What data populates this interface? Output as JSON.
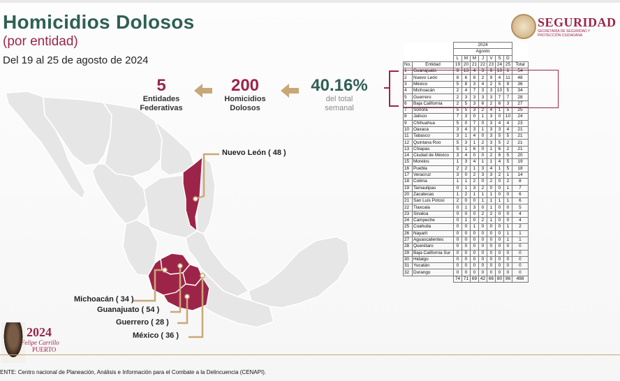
{
  "header": {
    "title": "Homicidios Dolosos",
    "subtitle": "(por entidad)",
    "date_range": "Del 19 al 25 de agosto de 2024",
    "logo_text": "SEGURIDAD",
    "logo_subtext": "SECRETARÍA DE SEGURIDAD Y PROTECCIÓN CIUDADANA"
  },
  "stats": {
    "entidades": {
      "value": "5",
      "label": "Entidades Federativas"
    },
    "homicidios": {
      "value": "200",
      "label": "Homicidios Dolosos"
    },
    "percent": {
      "value": "40.16%",
      "label": "del total semanal"
    }
  },
  "map_labels": {
    "nuevo_leon": "Nuevo León ( 48 )",
    "michoacan": "Michoacán ( 34 )",
    "guanajuato": "Guanajuato ( 54 )",
    "guerrero": "Guerrero ( 28 )",
    "mexico": "México ( 36 )"
  },
  "table": {
    "year": "2024",
    "month": "Agosto",
    "weekdays": [
      "L",
      "M",
      "M",
      "J",
      "V",
      "S",
      "D"
    ],
    "col_no": "No.",
    "col_entidad": "Entidad",
    "days": [
      "19",
      "20",
      "21",
      "22",
      "23",
      "24",
      "25"
    ],
    "col_total": "Total",
    "rows": [
      {
        "no": "1",
        "entidad": "Guanajuato",
        "v": [
          "9",
          "13",
          "4",
          "3",
          "9",
          "10",
          "6"
        ],
        "total": "54"
      },
      {
        "no": "2",
        "entidad": "Nuevo León",
        "v": [
          "8",
          "6",
          "8",
          "2",
          "9",
          "4",
          "11"
        ],
        "total": "48"
      },
      {
        "no": "3",
        "entidad": "México",
        "v": [
          "5",
          "8",
          "3",
          "4",
          "2",
          "5",
          "9"
        ],
        "total": "36"
      },
      {
        "no": "4",
        "entidad": "Michoacán",
        "v": [
          "2",
          "4",
          "7",
          "3",
          "3",
          "10",
          "5"
        ],
        "total": "34"
      },
      {
        "no": "5",
        "entidad": "Guerrero",
        "v": [
          "2",
          "3",
          "3",
          "3",
          "3",
          "7",
          "7"
        ],
        "total": "28"
      },
      {
        "no": "6",
        "entidad": "Baja California",
        "v": [
          "2",
          "5",
          "3",
          "6",
          "2",
          "6",
          "3"
        ],
        "total": "27"
      },
      {
        "no": "7",
        "entidad": "Sonora",
        "v": [
          "5",
          "5",
          "3",
          "2",
          "4",
          "1",
          "5"
        ],
        "total": "25"
      },
      {
        "no": "8",
        "entidad": "Jalisco",
        "v": [
          "7",
          "3",
          "0",
          "1",
          "3",
          "0",
          "10"
        ],
        "total": "24"
      },
      {
        "no": "9",
        "entidad": "Chihuahua",
        "v": [
          "5",
          "0",
          "7",
          "0",
          "3",
          "4",
          "4"
        ],
        "total": "23"
      },
      {
        "no": "10",
        "entidad": "Oaxaca",
        "v": [
          "3",
          "4",
          "3",
          "1",
          "3",
          "3",
          "4"
        ],
        "total": "21"
      },
      {
        "no": "11",
        "entidad": "Tabasco",
        "v": [
          "3",
          "1",
          "4",
          "0",
          "3",
          "5",
          "5"
        ],
        "total": "21"
      },
      {
        "no": "12",
        "entidad": "Quintana Roo",
        "v": [
          "5",
          "3",
          "1",
          "2",
          "3",
          "5",
          "2"
        ],
        "total": "21"
      },
      {
        "no": "13",
        "entidad": "Chiapas",
        "v": [
          "5",
          "1",
          "6",
          "0",
          "1",
          "6",
          "2"
        ],
        "total": "21"
      },
      {
        "no": "14",
        "entidad": "Ciudad de México",
        "v": [
          "3",
          "4",
          "0",
          "0",
          "2",
          "6",
          "5"
        ],
        "total": "20"
      },
      {
        "no": "15",
        "entidad": "Morelos",
        "v": [
          "1",
          "3",
          "4",
          "1",
          "1",
          "4",
          "5"
        ],
        "total": "19"
      },
      {
        "no": "16",
        "entidad": "Puebla",
        "v": [
          "2",
          "2",
          "1",
          "3",
          "4",
          "1",
          "5"
        ],
        "total": "18"
      },
      {
        "no": "17",
        "entidad": "Veracruz",
        "v": [
          "3",
          "0",
          "2",
          "3",
          "3",
          "2",
          "1"
        ],
        "total": "14"
      },
      {
        "no": "18",
        "entidad": "Colima",
        "v": [
          "1",
          "1",
          "2",
          "0",
          "2",
          "0",
          "2"
        ],
        "total": "8"
      },
      {
        "no": "19",
        "entidad": "Tamaulipas",
        "v": [
          "0",
          "1",
          "3",
          "2",
          "0",
          "0",
          "1"
        ],
        "total": "7"
      },
      {
        "no": "20",
        "entidad": "Zacatecas",
        "v": [
          "1",
          "2",
          "1",
          "1",
          "1",
          "0",
          "0"
        ],
        "total": "6"
      },
      {
        "no": "21",
        "entidad": "San Luis Potosí",
        "v": [
          "2",
          "0",
          "0",
          "1",
          "1",
          "1",
          "1"
        ],
        "total": "6"
      },
      {
        "no": "22",
        "entidad": "Tlaxcala",
        "v": [
          "0",
          "1",
          "3",
          "0",
          "1",
          "0",
          "0"
        ],
        "total": "5"
      },
      {
        "no": "23",
        "entidad": "Sinaloa",
        "v": [
          "0",
          "0",
          "0",
          "2",
          "2",
          "0",
          "0"
        ],
        "total": "4"
      },
      {
        "no": "24",
        "entidad": "Campeche",
        "v": [
          "0",
          "1",
          "0",
          "2",
          "1",
          "0",
          "0"
        ],
        "total": "4"
      },
      {
        "no": "25",
        "entidad": "Coahuila",
        "v": [
          "0",
          "0",
          "1",
          "0",
          "0",
          "0",
          "1"
        ],
        "total": "2"
      },
      {
        "no": "26",
        "entidad": "Nayarit",
        "v": [
          "0",
          "0",
          "0",
          "0",
          "0",
          "0",
          "1"
        ],
        "total": "1"
      },
      {
        "no": "27",
        "entidad": "Aguascalientes",
        "v": [
          "0",
          "0",
          "0",
          "0",
          "0",
          "0",
          "1"
        ],
        "total": "1"
      },
      {
        "no": "28",
        "entidad": "Querétaro",
        "v": [
          "0",
          "0",
          "0",
          "0",
          "0",
          "0",
          "0"
        ],
        "total": "0"
      },
      {
        "no": "29",
        "entidad": "Baja California Sur",
        "v": [
          "0",
          "0",
          "0",
          "0",
          "0",
          "0",
          "0"
        ],
        "total": "0"
      },
      {
        "no": "30",
        "entidad": "Hidalgo",
        "v": [
          "0",
          "0",
          "0",
          "0",
          "0",
          "0",
          "0"
        ],
        "total": "0"
      },
      {
        "no": "31",
        "entidad": "Yucatán",
        "v": [
          "0",
          "0",
          "0",
          "0",
          "0",
          "0",
          "0"
        ],
        "total": "0"
      },
      {
        "no": "32",
        "entidad": "Durango",
        "v": [
          "0",
          "0",
          "0",
          "0",
          "0",
          "0",
          "0"
        ],
        "total": "0"
      }
    ],
    "totals": [
      "74",
      "71",
      "69",
      "42",
      "66",
      "80",
      "96"
    ],
    "grand_total": "498"
  },
  "footer": {
    "source": "ENTE: Centro nacional de Planeación, Análisis e Información para el Combate a la Delincuencia (CENAPI).",
    "logo_year": "2024",
    "logo_name": "Felipe Carrillo",
    "logo_name2": "PUERTO"
  },
  "colors": {
    "guinda": "#9d2449",
    "teal": "#2f5f55",
    "gold": "#b38e5d",
    "map_gray": "#e6e6e6",
    "map_highlight": "#9d2449"
  }
}
